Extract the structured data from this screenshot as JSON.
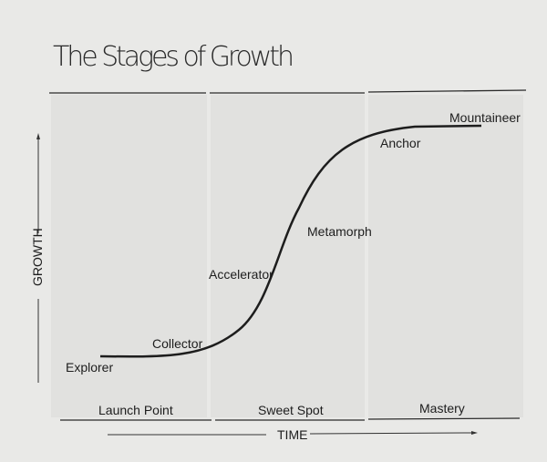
{
  "title": "The Stages of Growth",
  "axes": {
    "y_label": "GROWTH",
    "x_label": "TIME"
  },
  "phases": [
    "Launch Point",
    "Sweet Spot",
    "Mastery"
  ],
  "stages": [
    "Explorer",
    "Collector",
    "Accelerator",
    "Metamorph",
    "Anchor",
    "Mountaineer"
  ],
  "colors": {
    "page": "#e9e9e7",
    "panel": "#e1e1df",
    "ink": "#1d1d1d"
  }
}
